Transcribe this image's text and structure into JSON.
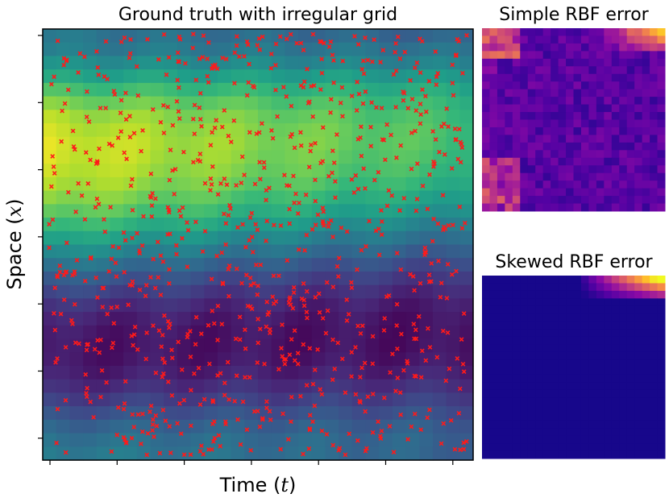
{
  "chart_data": [
    {
      "type": "heatmap",
      "title": "Ground truth with irregular grid",
      "xlabel": "Time",
      "xlabel_symbol": "t",
      "ylabel": "Space",
      "ylabel_symbol": "x",
      "colormap": "viridis",
      "grid_cells": [
        32,
        32
      ],
      "tick_labels_shown": false,
      "x_tick_count": 7,
      "y_tick_count": 7,
      "value_profile": {
        "description_rows_top_to_bottom": "low (teal) at top, peaks yellow in upper-middle band, falls to dark purple in lower band, teal again at bottom",
        "row_mean_values": [
          0.4,
          0.42,
          0.5,
          0.58,
          0.7,
          0.8,
          0.88,
          0.92,
          0.95,
          0.95,
          0.93,
          0.9,
          0.85,
          0.78,
          0.7,
          0.6,
          0.5,
          0.4,
          0.3,
          0.22,
          0.15,
          0.1,
          0.07,
          0.06,
          0.06,
          0.08,
          0.12,
          0.18,
          0.25,
          0.32,
          0.38,
          0.42
        ]
      },
      "scatter_overlay": {
        "marker": "x",
        "color": "#ff1a1a",
        "approx_count": 900,
        "distribution": "uniform random over the domain"
      },
      "grid": false
    },
    {
      "type": "heatmap",
      "title": "Simple RBF error",
      "colormap": "plasma",
      "grid_cells": [
        24,
        24
      ],
      "notes": "mostly low (dark blue/purple) with high error near the top-left, top-right and lower-left edges"
    },
    {
      "type": "heatmap",
      "title": "Skewed RBF error",
      "colormap": "plasma",
      "grid_cells": [
        24,
        24
      ],
      "notes": "near-zero everywhere except a small high-error wedge in the top-right corner"
    }
  ],
  "colors": {
    "scatter": "#ff1a1a",
    "frame": "#000000"
  }
}
